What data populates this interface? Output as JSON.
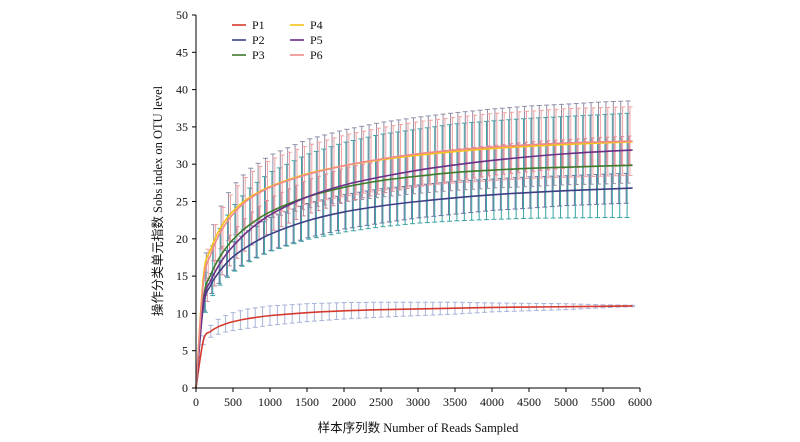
{
  "chart_data": {
    "type": "line",
    "xlabel": "样本序列数 Number of Reads Sampled",
    "ylabel": "操作分类单元指数 Sobs index on OTU level",
    "xlim": [
      0,
      6000
    ],
    "ylim": [
      0,
      50
    ],
    "xticks": [
      0,
      500,
      1000,
      1500,
      2000,
      2500,
      3000,
      3500,
      4000,
      4500,
      5000,
      5500,
      6000
    ],
    "yticks": [
      0,
      5,
      10,
      15,
      20,
      25,
      30,
      35,
      40,
      45,
      50
    ],
    "grid": false,
    "legend_position": "top-left",
    "x": [
      0,
      100,
      200,
      300,
      400,
      500,
      700,
      1000,
      1500,
      2000,
      2500,
      3000,
      3500,
      4000,
      4500,
      5000,
      5500,
      5900
    ],
    "series": [
      {
        "name": "P1",
        "color": "#d63a2e",
        "errcolor": "#a8b4d8",
        "values": [
          0,
          6.4,
          7.6,
          8.2,
          8.6,
          8.9,
          9.3,
          9.7,
          10.1,
          10.35,
          10.5,
          10.6,
          10.7,
          10.8,
          10.85,
          10.9,
          10.95,
          11.0
        ],
        "errors": [
          0,
          0.6,
          0.8,
          1.0,
          1.1,
          1.2,
          1.3,
          1.3,
          1.2,
          1.1,
          1.0,
          0.9,
          0.8,
          0.6,
          0.5,
          0.4,
          0.2,
          0.1
        ]
      },
      {
        "name": "P2",
        "color": "#3c3f84",
        "errcolor": "#6b6f9e",
        "values": [
          0,
          11.0,
          13.8,
          15.4,
          16.6,
          17.6,
          19.0,
          20.6,
          22.4,
          23.6,
          24.4,
          25.0,
          25.5,
          25.9,
          26.2,
          26.45,
          26.65,
          26.8
        ],
        "errors": [
          0,
          1.0,
          1.3,
          1.5,
          1.7,
          1.9,
          2.0,
          2.2,
          2.3,
          2.3,
          2.3,
          2.2,
          2.2,
          2.1,
          2.1,
          2.0,
          2.0,
          2.0
        ]
      },
      {
        "name": "P3",
        "color": "#3d7a2a",
        "errcolor": "#3aa3a3",
        "values": [
          0,
          12.0,
          15.2,
          17.2,
          18.7,
          19.9,
          21.7,
          23.6,
          25.6,
          26.9,
          27.8,
          28.4,
          28.9,
          29.2,
          29.45,
          29.6,
          29.75,
          29.85
        ],
        "errors": [
          0,
          2.5,
          3.2,
          3.7,
          4.1,
          4.4,
          4.9,
          5.3,
          5.7,
          6.0,
          6.2,
          6.3,
          6.5,
          6.6,
          6.7,
          6.8,
          6.9,
          7.0
        ]
      },
      {
        "name": "P4",
        "color": "#f5c21b",
        "errcolor": "#8f8fa8",
        "values": [
          0,
          15.0,
          18.6,
          20.9,
          22.5,
          23.7,
          25.4,
          27.0,
          28.7,
          29.8,
          30.6,
          31.2,
          31.7,
          32.1,
          32.4,
          32.65,
          32.85,
          33.0
        ],
        "errors": [
          0,
          1.4,
          2.2,
          2.7,
          3.1,
          3.4,
          3.8,
          4.2,
          4.6,
          4.8,
          5.0,
          5.1,
          5.2,
          5.3,
          5.4,
          5.4,
          5.5,
          5.5
        ]
      },
      {
        "name": "P5",
        "color": "#6b2f88",
        "errcolor": "#c98a9a",
        "values": [
          0,
          11.5,
          14.4,
          16.3,
          17.8,
          19.0,
          21.0,
          23.2,
          25.6,
          27.2,
          28.3,
          29.2,
          29.9,
          30.5,
          31.0,
          31.4,
          31.7,
          31.9
        ],
        "errors": [
          0,
          1.2,
          1.6,
          1.8,
          2.0,
          2.1,
          2.2,
          2.3,
          2.3,
          2.3,
          2.2,
          2.2,
          2.1,
          2.0,
          2.0,
          1.9,
          1.9,
          1.9
        ]
      },
      {
        "name": "P6",
        "color": "#f08a8a",
        "errcolor": "#f2a0a0",
        "values": [
          0,
          14.2,
          17.9,
          20.3,
          22.0,
          23.3,
          25.2,
          26.9,
          28.6,
          29.8,
          30.7,
          31.4,
          31.9,
          32.3,
          32.6,
          32.85,
          33.0,
          33.1
        ],
        "errors": [
          0,
          1.6,
          2.2,
          2.6,
          2.9,
          3.1,
          3.4,
          3.7,
          3.9,
          4.1,
          4.2,
          4.3,
          4.4,
          4.5,
          4.5,
          4.6,
          4.6,
          4.6
        ]
      }
    ]
  }
}
